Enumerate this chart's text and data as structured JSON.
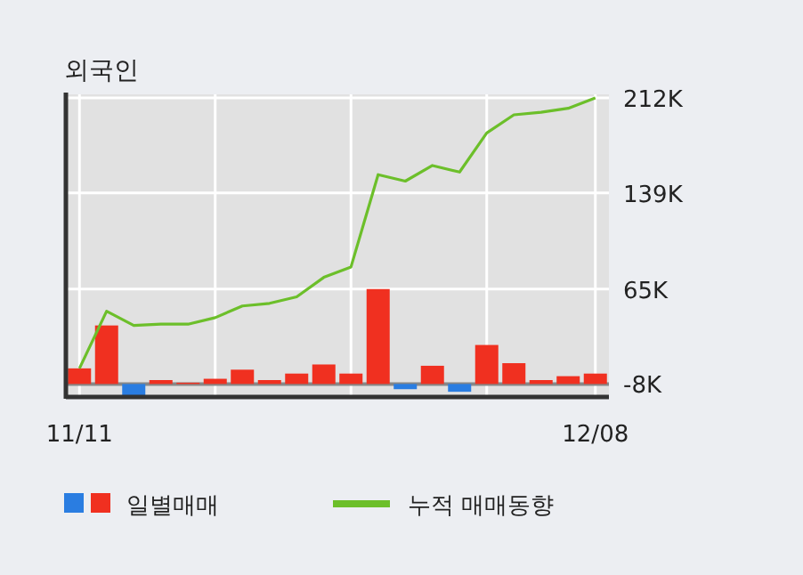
{
  "chart_data": {
    "type": "bar",
    "title": "외국인",
    "categories": [
      "11/11",
      null,
      null,
      null,
      null,
      null,
      null,
      null,
      null,
      null,
      null,
      null,
      null,
      null,
      null,
      null,
      null,
      null,
      null,
      "12/08"
    ],
    "series": [
      {
        "name": "일별매매",
        "base": [
          -8,
          -8,
          -8,
          -8,
          -8,
          -8,
          -8,
          -8,
          -8,
          -8,
          -8,
          -8,
          -8,
          -8,
          -8,
          -8,
          -8,
          -8,
          -8,
          -8
        ],
        "values": [
          12,
          45,
          -10,
          3,
          1,
          4,
          11,
          3,
          8,
          15,
          8,
          73,
          -4,
          14,
          -6,
          30,
          16,
          3,
          6,
          8
        ],
        "colors": [
          "#f03020",
          "#f03020",
          "#2a7de1",
          "#f03020",
          "#f03020",
          "#f03020",
          "#f03020",
          "#f03020",
          "#f03020",
          "#f03020",
          "#f03020",
          "#f03020",
          "#2a7de1",
          "#f03020",
          "#2a7de1",
          "#f03020",
          "#f03020",
          "#f03020",
          "#f03020",
          "#f03020"
        ]
      },
      {
        "name": "누적 매매동향",
        "type": "line",
        "color": "#6cbf2a",
        "values": [
          4,
          48,
          37,
          38,
          38,
          43,
          52,
          54,
          59,
          74,
          82,
          153,
          148,
          160,
          155,
          185,
          199,
          201,
          204,
          212
        ]
      }
    ],
    "ylim": [
      -18,
      212
    ],
    "yticks": [
      {
        "value": -8,
        "label": "-8K"
      },
      {
        "value": 65,
        "label": "65K"
      },
      {
        "value": 139,
        "label": "139K"
      },
      {
        "value": 212,
        "label": "212K"
      }
    ],
    "ref_lines": [
      {
        "axis": "y",
        "value": -8,
        "color": "#888888"
      }
    ],
    "grid": true,
    "legend": "bottom",
    "marker": "none",
    "line_style": "solid"
  }
}
